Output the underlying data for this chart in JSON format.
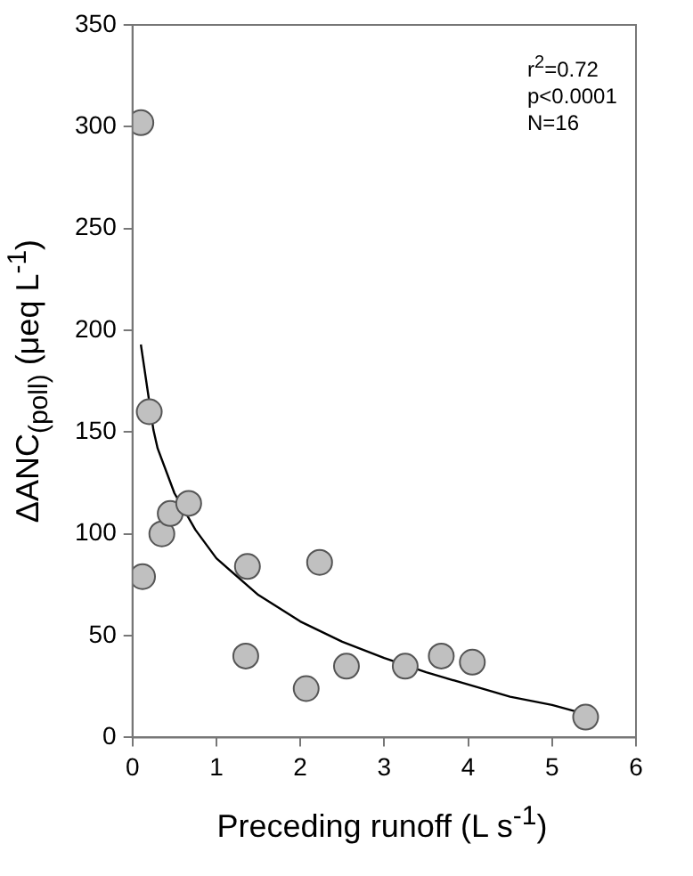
{
  "chart_data": {
    "type": "scatter",
    "xlabel": "Preceding runoff (L s$^{-1}$)",
    "ylabel": "ΔANC$_{(poll)}$ (μeq L$^{-1}$)",
    "annotations": [
      "r$^{2}$=0.72",
      "p<0.0001",
      "N=16"
    ],
    "xlim": [
      0,
      6
    ],
    "xticks": [
      0,
      1,
      2,
      3,
      4,
      5,
      6
    ],
    "ylim": [
      0,
      350
    ],
    "yticks": [
      0,
      50,
      100,
      150,
      200,
      250,
      300,
      350
    ],
    "grid": false,
    "legend": false,
    "line_style": "solid",
    "series": [
      {
        "type": "scatter",
        "marker": "circle",
        "color": "#c0c0c0",
        "x": [
          0.1,
          0.2,
          0.12,
          0.35,
          0.45,
          0.67,
          1.37,
          1.35,
          2.07,
          2.23,
          2.55,
          3.25,
          3.68,
          4.05,
          5.4
        ],
        "values": [
          302,
          160,
          79,
          100,
          110,
          115,
          84,
          40,
          24,
          86,
          35,
          35,
          40,
          37,
          10
        ]
      },
      {
        "type": "line",
        "marker": "none",
        "color": "#000000",
        "x": [
          0.1,
          0.25,
          0.3,
          0.5,
          0.75,
          1,
          1.5,
          2,
          2.5,
          3,
          3.5,
          4,
          4.5,
          5,
          5.35
        ],
        "values": [
          193,
          151,
          142,
          120,
          102,
          88,
          70,
          57,
          47,
          39,
          32,
          26,
          20,
          16,
          12
        ]
      }
    ]
  }
}
